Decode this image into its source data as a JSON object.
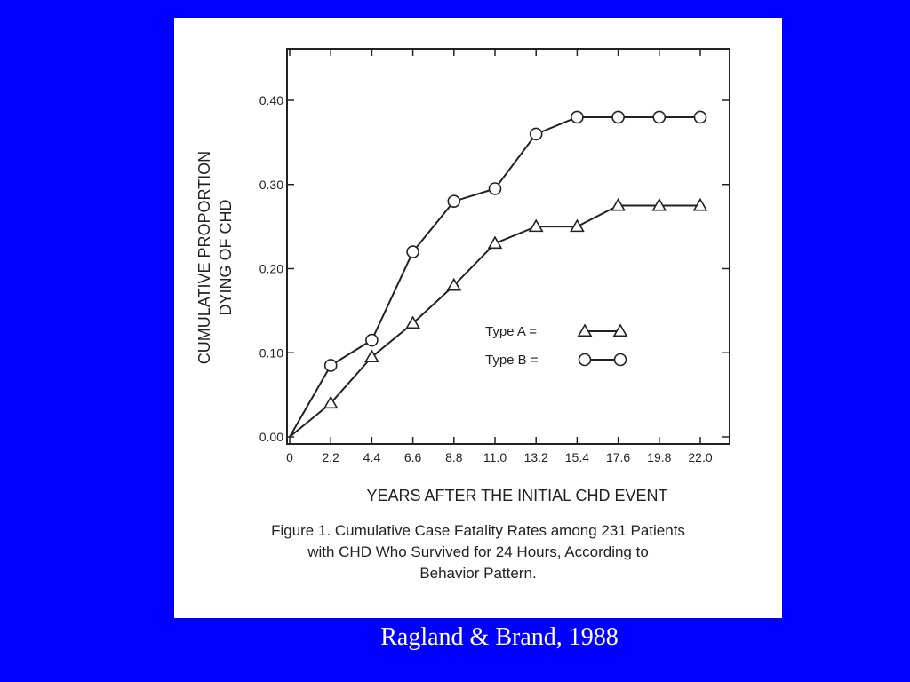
{
  "figure": {
    "caption_lines": [
      "Figure 1. Cumulative Case Fatality Rates among 231 Patients",
      "with CHD Who Survived for 24 Hours, According to",
      "Behavior Pattern."
    ]
  },
  "source": "Ragland & Brand, 1988",
  "chart_data": {
    "type": "line",
    "title": "",
    "xlabel": "YEARS AFTER THE INITIAL CHD EVENT",
    "ylabel": [
      "CUMULATIVE PROPORTION",
      "DYING OF CHD"
    ],
    "x": [
      0,
      2.2,
      4.4,
      6.6,
      8.8,
      11.0,
      13.2,
      15.4,
      17.6,
      19.8,
      22.0
    ],
    "x_tick_labels": [
      "0",
      "2.2",
      "4.4",
      "6.6",
      "8.8",
      "11.0",
      "13.2",
      "15.4",
      "17.6",
      "19.8",
      "22.0"
    ],
    "y_tick_labels": [
      "0.00",
      "0.10",
      "0.20",
      "0.30",
      "0.40"
    ],
    "y_ticks": [
      0.0,
      0.1,
      0.2,
      0.3,
      0.4
    ],
    "xlim": [
      0,
      22.0
    ],
    "ylim": [
      0,
      0.4
    ],
    "legend_position": "right",
    "series": [
      {
        "name": "Type A",
        "legend_label": "Type A =",
        "marker": "triangle",
        "values": [
          0.0,
          0.04,
          0.095,
          0.135,
          0.18,
          0.23,
          0.25,
          0.25,
          0.275,
          0.275,
          0.275
        ]
      },
      {
        "name": "Type B",
        "legend_label": "Type B =",
        "marker": "circle",
        "values": [
          0.0,
          0.085,
          0.115,
          0.22,
          0.28,
          0.295,
          0.36,
          0.38,
          0.38,
          0.38,
          0.38
        ]
      }
    ]
  }
}
